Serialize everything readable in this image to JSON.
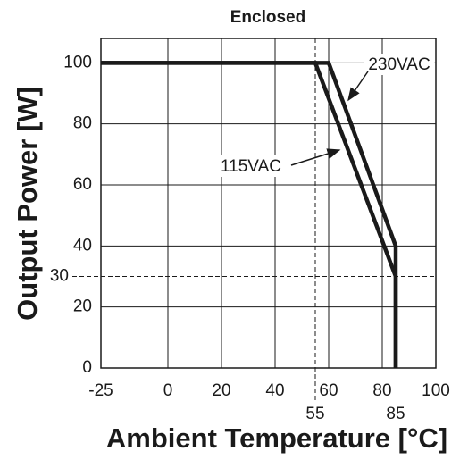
{
  "chart_data": {
    "type": "line",
    "title": "Enclosed",
    "x_label": "Ambient Temperature [°C]",
    "y_label": "Output Power [W]",
    "xlim": [
      -25,
      100
    ],
    "ylim": [
      0,
      108
    ],
    "xticks": [
      -25,
      0,
      20,
      40,
      60,
      80,
      100
    ],
    "yticks": [
      0,
      20,
      40,
      60,
      80,
      100
    ],
    "extra_xticks": [
      55,
      85
    ],
    "extra_x_dashed": [
      true,
      false
    ],
    "extra_yticks": [
      30
    ],
    "extra_y_dashed": [
      true
    ],
    "grid": true,
    "series": [
      {
        "name": "230VAC",
        "color": "#1a1a1a",
        "x": [
          -25,
          60,
          85,
          85
        ],
        "values": [
          100,
          100,
          40,
          0
        ]
      },
      {
        "name": "115VAC",
        "color": "#1a1a1a",
        "x": [
          -25,
          55,
          85,
          85
        ],
        "values": [
          100,
          100,
          30,
          0
        ]
      }
    ]
  }
}
